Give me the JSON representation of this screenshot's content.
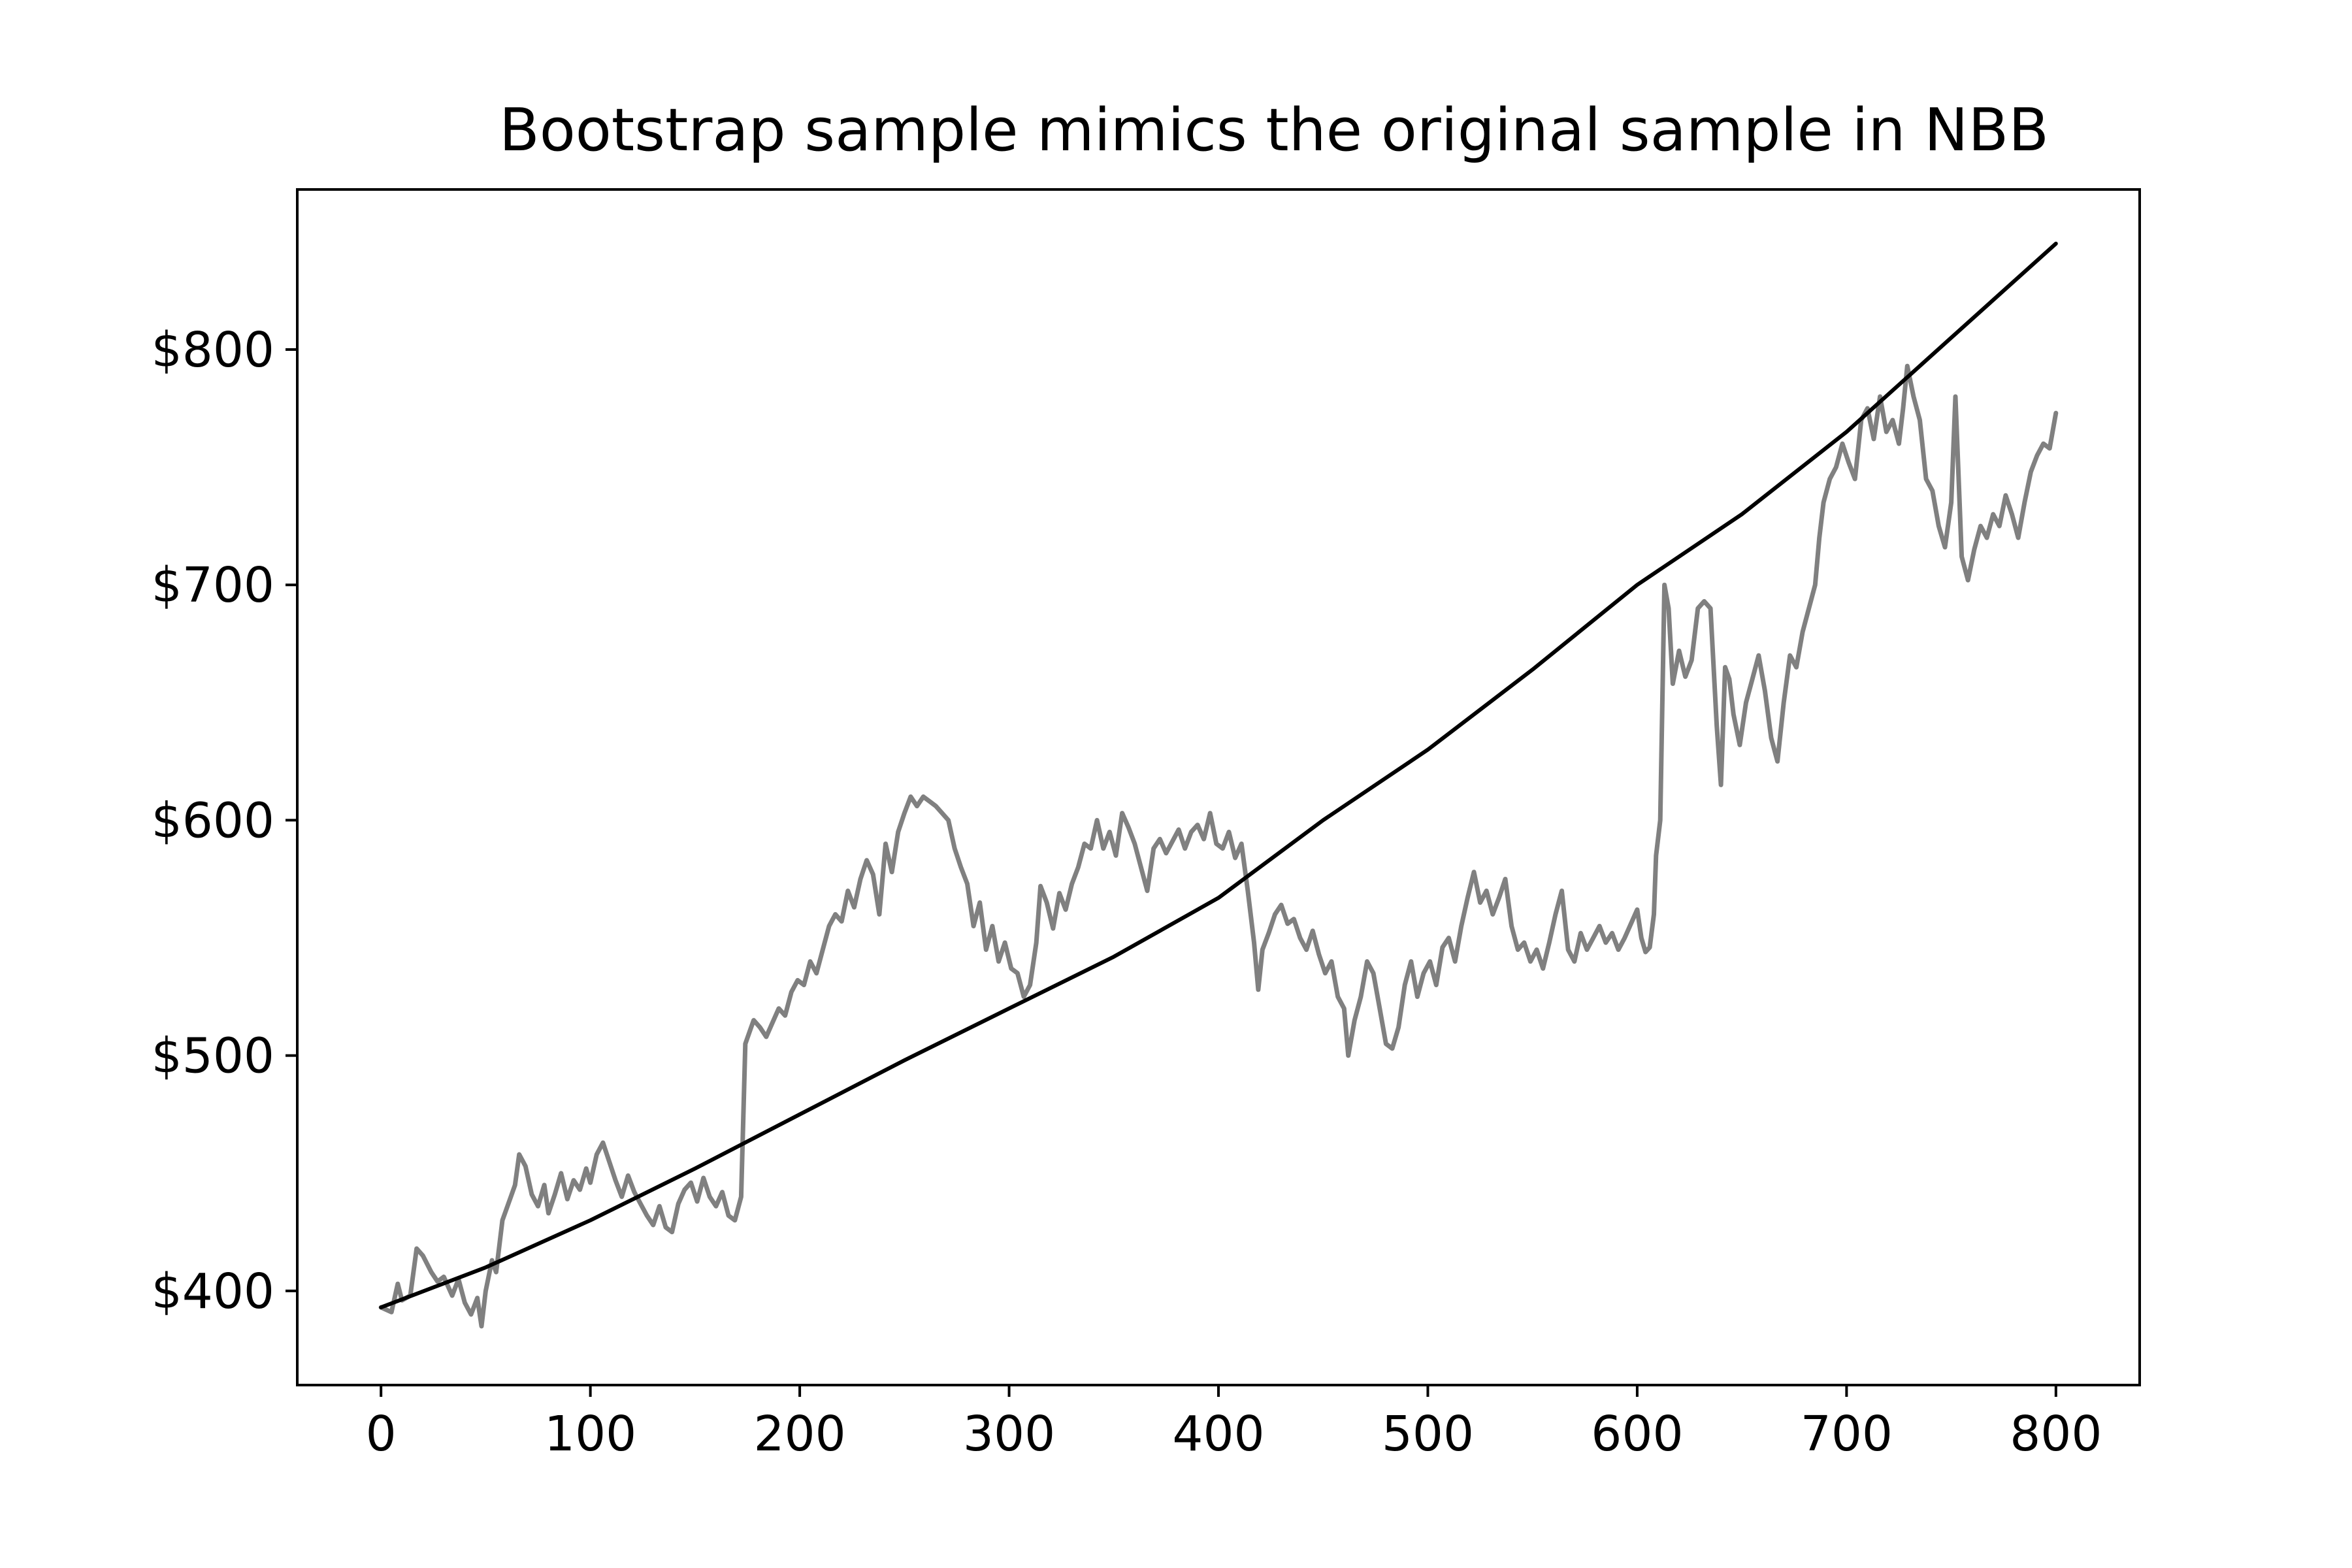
{
  "chart_data": {
    "type": "line",
    "title": "Bootstrap sample mimics the original sample in NBB",
    "xlabel": "",
    "ylabel": "",
    "xlim": [
      -40,
      840
    ],
    "ylim": [
      360,
      868
    ],
    "xticks": [
      0,
      100,
      200,
      300,
      400,
      500,
      600,
      700,
      800
    ],
    "xtick_labels": [
      "0",
      "100",
      "200",
      "300",
      "400",
      "500",
      "600",
      "700",
      "800"
    ],
    "yticks": [
      400,
      500,
      600,
      700,
      800
    ],
    "ytick_labels": [
      "$400",
      "$500",
      "$600",
      "$700",
      "$800"
    ],
    "grid": false,
    "legend": "none",
    "series": [
      {
        "color": "#808080",
        "points": [
          [
            0,
            393
          ],
          [
            5,
            391
          ],
          [
            8,
            403
          ],
          [
            10,
            396
          ],
          [
            14,
            398
          ],
          [
            17,
            418
          ],
          [
            20,
            415
          ],
          [
            24,
            408
          ],
          [
            27,
            404
          ],
          [
            30,
            406
          ],
          [
            34,
            398
          ],
          [
            37,
            405
          ],
          [
            40,
            395
          ],
          [
            43,
            390
          ],
          [
            46,
            397
          ],
          [
            48,
            385
          ],
          [
            50,
            400
          ],
          [
            53,
            413
          ],
          [
            55,
            408
          ],
          [
            58,
            430
          ],
          [
            62,
            440
          ],
          [
            64,
            445
          ],
          [
            66,
            458
          ],
          [
            69,
            453
          ],
          [
            72,
            441
          ],
          [
            75,
            436
          ],
          [
            78,
            445
          ],
          [
            80,
            433
          ],
          [
            83,
            441
          ],
          [
            86,
            450
          ],
          [
            89,
            439
          ],
          [
            92,
            447
          ],
          [
            95,
            443
          ],
          [
            98,
            452
          ],
          [
            100,
            446
          ],
          [
            103,
            458
          ],
          [
            106,
            463
          ],
          [
            109,
            455
          ],
          [
            112,
            447
          ],
          [
            115,
            440
          ],
          [
            118,
            449
          ],
          [
            121,
            442
          ],
          [
            124,
            437
          ],
          [
            127,
            432
          ],
          [
            130,
            428
          ],
          [
            133,
            436
          ],
          [
            136,
            427
          ],
          [
            139,
            425
          ],
          [
            142,
            437
          ],
          [
            145,
            443
          ],
          [
            148,
            446
          ],
          [
            151,
            438
          ],
          [
            154,
            448
          ],
          [
            157,
            440
          ],
          [
            160,
            436
          ],
          [
            163,
            442
          ],
          [
            166,
            432
          ],
          [
            169,
            430
          ],
          [
            172,
            440
          ],
          [
            174,
            505
          ],
          [
            176,
            510
          ],
          [
            178,
            515
          ],
          [
            181,
            512
          ],
          [
            184,
            508
          ],
          [
            187,
            514
          ],
          [
            190,
            520
          ],
          [
            193,
            517
          ],
          [
            196,
            527
          ],
          [
            199,
            532
          ],
          [
            202,
            530
          ],
          [
            205,
            540
          ],
          [
            208,
            535
          ],
          [
            211,
            545
          ],
          [
            214,
            555
          ],
          [
            217,
            560
          ],
          [
            220,
            557
          ],
          [
            223,
            570
          ],
          [
            226,
            563
          ],
          [
            229,
            575
          ],
          [
            232,
            583
          ],
          [
            235,
            577
          ],
          [
            238,
            560
          ],
          [
            241,
            590
          ],
          [
            244,
            578
          ],
          [
            247,
            595
          ],
          [
            250,
            603
          ],
          [
            253,
            610
          ],
          [
            256,
            606
          ],
          [
            259,
            610
          ],
          [
            262,
            608
          ],
          [
            265,
            606
          ],
          [
            268,
            603
          ],
          [
            271,
            600
          ],
          [
            274,
            588
          ],
          [
            277,
            580
          ],
          [
            280,
            573
          ],
          [
            283,
            555
          ],
          [
            286,
            565
          ],
          [
            289,
            545
          ],
          [
            292,
            555
          ],
          [
            295,
            540
          ],
          [
            298,
            548
          ],
          [
            301,
            537
          ],
          [
            304,
            535
          ],
          [
            307,
            525
          ],
          [
            310,
            530
          ],
          [
            313,
            548
          ],
          [
            315,
            572
          ],
          [
            318,
            565
          ],
          [
            321,
            554
          ],
          [
            324,
            569
          ],
          [
            327,
            562
          ],
          [
            330,
            573
          ],
          [
            333,
            580
          ],
          [
            336,
            590
          ],
          [
            339,
            588
          ],
          [
            342,
            600
          ],
          [
            345,
            588
          ],
          [
            348,
            595
          ],
          [
            351,
            585
          ],
          [
            354,
            603
          ],
          [
            357,
            597
          ],
          [
            360,
            590
          ],
          [
            363,
            580
          ],
          [
            366,
            570
          ],
          [
            369,
            588
          ],
          [
            372,
            592
          ],
          [
            375,
            586
          ],
          [
            378,
            591
          ],
          [
            381,
            596
          ],
          [
            384,
            588
          ],
          [
            387,
            595
          ],
          [
            390,
            598
          ],
          [
            393,
            592
          ],
          [
            396,
            603
          ],
          [
            399,
            590
          ],
          [
            402,
            588
          ],
          [
            405,
            595
          ],
          [
            408,
            584
          ],
          [
            411,
            590
          ],
          [
            414,
            570
          ],
          [
            417,
            548
          ],
          [
            419,
            528
          ],
          [
            421,
            545
          ],
          [
            424,
            552
          ],
          [
            427,
            560
          ],
          [
            430,
            564
          ],
          [
            433,
            556
          ],
          [
            436,
            558
          ],
          [
            439,
            550
          ],
          [
            442,
            545
          ],
          [
            445,
            553
          ],
          [
            448,
            543
          ],
          [
            451,
            535
          ],
          [
            454,
            540
          ],
          [
            457,
            525
          ],
          [
            460,
            520
          ],
          [
            462,
            500
          ],
          [
            465,
            515
          ],
          [
            468,
            525
          ],
          [
            471,
            540
          ],
          [
            474,
            535
          ],
          [
            477,
            520
          ],
          [
            480,
            505
          ],
          [
            483,
            503
          ],
          [
            486,
            512
          ],
          [
            489,
            530
          ],
          [
            492,
            540
          ],
          [
            495,
            525
          ],
          [
            498,
            535
          ],
          [
            501,
            540
          ],
          [
            504,
            530
          ],
          [
            507,
            546
          ],
          [
            510,
            550
          ],
          [
            513,
            540
          ],
          [
            516,
            555
          ],
          [
            519,
            567
          ],
          [
            522,
            578
          ],
          [
            525,
            565
          ],
          [
            528,
            570
          ],
          [
            531,
            560
          ],
          [
            534,
            567
          ],
          [
            537,
            575
          ],
          [
            540,
            555
          ],
          [
            543,
            545
          ],
          [
            546,
            548
          ],
          [
            549,
            540
          ],
          [
            552,
            545
          ],
          [
            555,
            537
          ],
          [
            558,
            548
          ],
          [
            561,
            560
          ],
          [
            564,
            570
          ],
          [
            567,
            545
          ],
          [
            570,
            540
          ],
          [
            573,
            552
          ],
          [
            576,
            545
          ],
          [
            579,
            550
          ],
          [
            582,
            555
          ],
          [
            585,
            548
          ],
          [
            588,
            552
          ],
          [
            591,
            545
          ],
          [
            594,
            550
          ],
          [
            597,
            556
          ],
          [
            600,
            562
          ],
          [
            602,
            550
          ],
          [
            604,
            544
          ],
          [
            606,
            546
          ],
          [
            608,
            560
          ],
          [
            609,
            585
          ],
          [
            611,
            600
          ],
          [
            613,
            700
          ],
          [
            615,
            690
          ],
          [
            617,
            658
          ],
          [
            620,
            672
          ],
          [
            623,
            661
          ],
          [
            626,
            668
          ],
          [
            629,
            690
          ],
          [
            632,
            693
          ],
          [
            635,
            690
          ],
          [
            638,
            640
          ],
          [
            640,
            615
          ],
          [
            642,
            665
          ],
          [
            644,
            660
          ],
          [
            646,
            645
          ],
          [
            649,
            632
          ],
          [
            652,
            650
          ],
          [
            655,
            660
          ],
          [
            658,
            670
          ],
          [
            661,
            655
          ],
          [
            664,
            635
          ],
          [
            667,
            625
          ],
          [
            670,
            650
          ],
          [
            673,
            670
          ],
          [
            676,
            665
          ],
          [
            679,
            680
          ],
          [
            682,
            690
          ],
          [
            685,
            700
          ],
          [
            687,
            720
          ],
          [
            689,
            735
          ],
          [
            692,
            745
          ],
          [
            695,
            750
          ],
          [
            698,
            760
          ],
          [
            701,
            752
          ],
          [
            704,
            745
          ],
          [
            707,
            770
          ],
          [
            710,
            775
          ],
          [
            713,
            762
          ],
          [
            716,
            780
          ],
          [
            719,
            765
          ],
          [
            722,
            770
          ],
          [
            725,
            760
          ],
          [
            727,
            775
          ],
          [
            729,
            793
          ],
          [
            732,
            780
          ],
          [
            735,
            770
          ],
          [
            738,
            745
          ],
          [
            741,
            740
          ],
          [
            744,
            725
          ],
          [
            747,
            716
          ],
          [
            750,
            735
          ],
          [
            752,
            780
          ],
          [
            755,
            712
          ],
          [
            758,
            702
          ],
          [
            761,
            715
          ],
          [
            764,
            725
          ],
          [
            767,
            720
          ],
          [
            770,
            730
          ],
          [
            773,
            725
          ],
          [
            776,
            738
          ],
          [
            779,
            730
          ],
          [
            782,
            720
          ],
          [
            785,
            735
          ],
          [
            788,
            748
          ],
          [
            791,
            755
          ],
          [
            794,
            760
          ],
          [
            797,
            758
          ],
          [
            800,
            773
          ]
        ]
      },
      {
        "color": "#000000",
        "points": [
          [
            0,
            393
          ],
          [
            50,
            410
          ],
          [
            100,
            430
          ],
          [
            150,
            452
          ],
          [
            200,
            475
          ],
          [
            250,
            498
          ],
          [
            300,
            520
          ],
          [
            350,
            542
          ],
          [
            400,
            567
          ],
          [
            450,
            600
          ],
          [
            500,
            630
          ],
          [
            550,
            664
          ],
          [
            600,
            700
          ],
          [
            650,
            730
          ],
          [
            700,
            765
          ],
          [
            750,
            805
          ],
          [
            800,
            845
          ]
        ]
      }
    ]
  }
}
